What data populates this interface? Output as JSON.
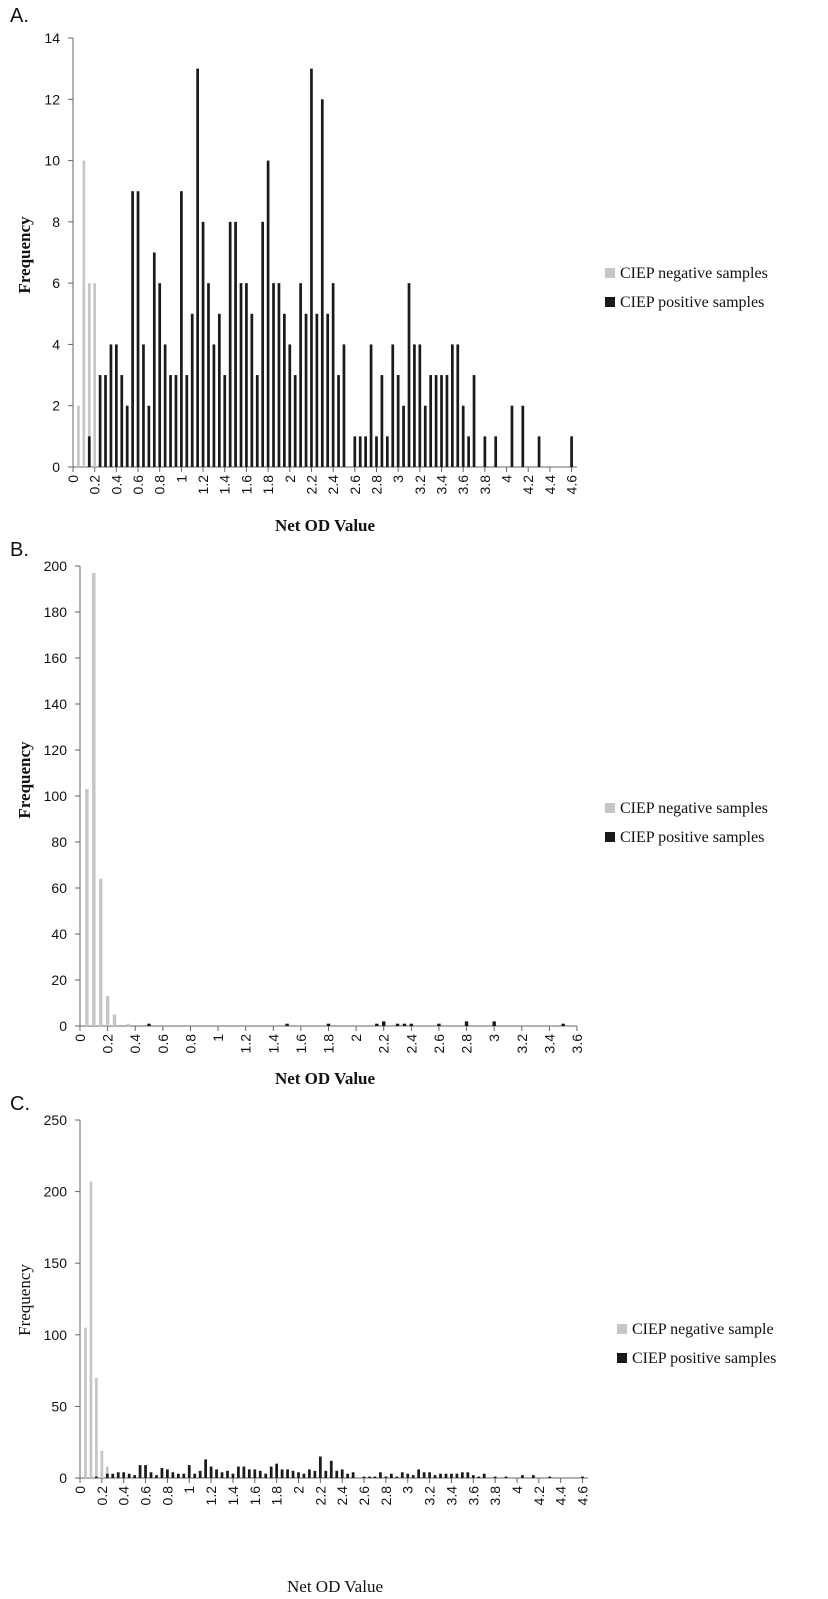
{
  "legend": {
    "negative_label": "CIEP negative samples",
    "positive_label": "CIEP positive samples",
    "negative_label_c": "CIEP negative sample",
    "positive_label_c": "CIEP positive samples"
  },
  "colors": {
    "negative": "#c6c6c6",
    "positive": "#1a1a1a",
    "axis": "#666666"
  },
  "chart_data": [
    {
      "panel": "A.",
      "type": "bar",
      "xlabel": "Net OD Value",
      "ylabel": "Frequency",
      "ylim": [
        0,
        14
      ],
      "yticks": [
        0,
        2,
        4,
        6,
        8,
        10,
        12,
        14
      ],
      "xlim": [
        0,
        4.65
      ],
      "xticks": [
        "0",
        "0.2",
        "0.4",
        "0.6",
        "0.8",
        "1",
        "1.2",
        "1.4",
        "1.6",
        "1.8",
        "2",
        "2.2",
        "2.4",
        "2.6",
        "2.8",
        "3",
        "3.2",
        "3.4",
        "3.6",
        "3.8",
        "4",
        "4.2",
        "4.4",
        "4.6"
      ],
      "bin_width": 0.05,
      "series": [
        {
          "name": "CIEP negative samples",
          "values": [
            0,
            2,
            10,
            6,
            6,
            0,
            0,
            0,
            0,
            0,
            0,
            0,
            0,
            0,
            0,
            0,
            0,
            0,
            0,
            0,
            0,
            0,
            0,
            0,
            0,
            0,
            0,
            0,
            0,
            0,
            0,
            0,
            0,
            0,
            0,
            0,
            0,
            0,
            0,
            0,
            0,
            0,
            0,
            0,
            0,
            0,
            0,
            0,
            0,
            0,
            0,
            0,
            0,
            0,
            0,
            0,
            0,
            0,
            0,
            0,
            0,
            0,
            0,
            0,
            0,
            0,
            0,
            0,
            0,
            0,
            0,
            0,
            0,
            0,
            0,
            0,
            0,
            0,
            0,
            0,
            0,
            0,
            0,
            0,
            0,
            0,
            0,
            0,
            0,
            0,
            0,
            0,
            0
          ]
        },
        {
          "name": "CIEP positive samples",
          "values": [
            0,
            0,
            0,
            1,
            0,
            3,
            3,
            4,
            4,
            3,
            2,
            9,
            9,
            4,
            2,
            7,
            6,
            4,
            3,
            3,
            9,
            3,
            5,
            13,
            8,
            6,
            4,
            5,
            3,
            8,
            8,
            6,
            6,
            5,
            3,
            8,
            10,
            6,
            6,
            5,
            4,
            3,
            6,
            5,
            13,
            5,
            12,
            5,
            6,
            3,
            4,
            0,
            1,
            1,
            1,
            4,
            1,
            3,
            1,
            4,
            3,
            2,
            6,
            4,
            4,
            2,
            3,
            3,
            3,
            3,
            4,
            4,
            2,
            1,
            3,
            0,
            1,
            0,
            1,
            0,
            0,
            2,
            0,
            2,
            0,
            0,
            1,
            0,
            0,
            0,
            0,
            0,
            1
          ]
        }
      ]
    },
    {
      "panel": "B.",
      "type": "bar",
      "xlabel": "Net OD Value",
      "ylabel": "Frequency",
      "ylim": [
        0,
        200
      ],
      "yticks": [
        0,
        20,
        40,
        60,
        80,
        100,
        120,
        140,
        160,
        180,
        200
      ],
      "xlim": [
        0,
        3.6
      ],
      "xticks": [
        "0",
        "0.2",
        "0.4",
        "0.6",
        "0.8",
        "1",
        "1.2",
        "1.4",
        "1.6",
        "1.8",
        "2",
        "2.2",
        "2.4",
        "2.6",
        "2.8",
        "3",
        "3.2",
        "3.4",
        "3.6"
      ],
      "bin_width": 0.05,
      "series": [
        {
          "name": "CIEP negative samples",
          "values": [
            0,
            103,
            197,
            64,
            13,
            5,
            0,
            1,
            0,
            0,
            0,
            0,
            0,
            0,
            0,
            0,
            0,
            0,
            0,
            0,
            0,
            0,
            0,
            0,
            0,
            0,
            0,
            0,
            0,
            0,
            0,
            0,
            0,
            0,
            0,
            0,
            0,
            0,
            0,
            0,
            0,
            0,
            0,
            0,
            0,
            0,
            0,
            0,
            0,
            0,
            0,
            0,
            0,
            0,
            0,
            0,
            0,
            0,
            0,
            0,
            0,
            0,
            0,
            0,
            0,
            0,
            0,
            0,
            0,
            0,
            0,
            0
          ]
        },
        {
          "name": "CIEP positive samples",
          "values": [
            0,
            0,
            0,
            0,
            0,
            0,
            0,
            0,
            0,
            0,
            1,
            0,
            0,
            0,
            0,
            0,
            0,
            0,
            0,
            0,
            0,
            0,
            0,
            0,
            0,
            0,
            0,
            0,
            0,
            0,
            1,
            0,
            0,
            0,
            0,
            0,
            1,
            0,
            0,
            0,
            0,
            0,
            0,
            1,
            2,
            0,
            1,
            1,
            1,
            0,
            0,
            0,
            1,
            0,
            0,
            0,
            2,
            0,
            0,
            0,
            2,
            0,
            0,
            0,
            0,
            0,
            0,
            0,
            0,
            0,
            1,
            0
          ]
        }
      ]
    },
    {
      "panel": "C.",
      "type": "bar",
      "xlabel": "Net OD Value",
      "ylabel": "Frequency",
      "ylim": [
        0,
        250
      ],
      "yticks": [
        0,
        50,
        100,
        150,
        200,
        250
      ],
      "xlim": [
        0,
        4.65
      ],
      "xticks": [
        "0",
        "0.2",
        "0.4",
        "0.6",
        "0.8",
        "1",
        "1.2",
        "1.4",
        "1.6",
        "1.8",
        "2",
        "2.2",
        "2.4",
        "2.6",
        "2.8",
        "3",
        "3.2",
        "3.4",
        "3.6",
        "3.8",
        "4",
        "4.2",
        "4.4",
        "4.6"
      ],
      "bin_width": 0.05,
      "series": [
        {
          "name": "CIEP negative samples",
          "values": [
            0,
            105,
            207,
            70,
            19,
            8,
            0,
            1,
            0,
            0,
            0,
            0,
            0,
            0,
            0,
            0,
            0,
            0,
            0,
            0,
            0,
            0,
            0,
            0,
            0,
            0,
            0,
            0,
            0,
            0,
            0,
            0,
            0,
            0,
            0,
            0,
            0,
            0,
            0,
            0,
            0,
            0,
            0,
            0,
            0,
            0,
            0,
            0,
            0,
            0,
            0,
            0,
            0,
            0,
            0,
            0,
            0,
            0,
            0,
            0,
            0,
            0,
            0,
            0,
            0,
            0,
            0,
            0,
            0,
            0,
            0,
            0,
            0,
            0,
            0,
            0,
            0,
            0,
            0,
            0,
            0,
            0,
            0,
            0,
            0,
            0,
            0,
            0,
            0,
            0,
            0,
            0,
            0
          ]
        },
        {
          "name": "CIEP positive samples",
          "values": [
            0,
            0,
            0,
            1,
            0,
            3,
            3,
            4,
            4,
            3,
            2,
            9,
            9,
            4,
            2,
            7,
            6,
            4,
            3,
            3,
            9,
            3,
            5,
            13,
            8,
            6,
            4,
            5,
            3,
            8,
            8,
            6,
            6,
            5,
            3,
            8,
            10,
            6,
            6,
            5,
            4,
            3,
            6,
            5,
            15,
            5,
            12,
            5,
            6,
            3,
            4,
            0,
            1,
            1,
            1,
            4,
            1,
            3,
            1,
            4,
            3,
            2,
            6,
            4,
            4,
            2,
            3,
            3,
            3,
            3,
            4,
            4,
            2,
            1,
            3,
            0,
            1,
            0,
            1,
            0,
            0,
            2,
            0,
            2,
            0,
            0,
            1,
            0,
            0,
            0,
            0,
            0,
            1
          ]
        }
      ]
    }
  ]
}
